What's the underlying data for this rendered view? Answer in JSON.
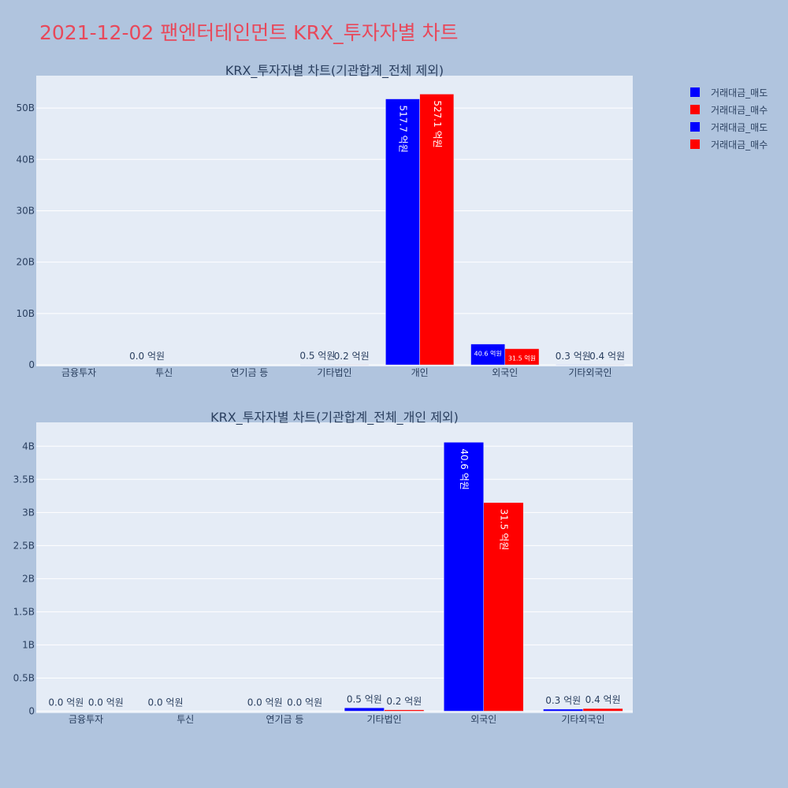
{
  "page": {
    "title": "2021-12-02 팬엔터테인먼트 KRX_투자자별 차트"
  },
  "legend": [
    {
      "label": "거래대금_매도",
      "color": "#0000ff"
    },
    {
      "label": "거래대금_매수",
      "color": "#ff0000"
    },
    {
      "label": "거래대금_매도",
      "color": "#0000ff"
    },
    {
      "label": "거래대금_매수",
      "color": "#ff0000"
    }
  ],
  "chart_data": [
    {
      "type": "bar",
      "title": "KRX_투자자별 차트(기관합계_전체 제외)",
      "categories": [
        "금융투자",
        "투신",
        "연기금 등",
        "기타법인",
        "개인",
        "외국인",
        "기타외국인"
      ],
      "series": [
        {
          "name": "거래대금_매도",
          "color": "#0000ff",
          "values": [
            0,
            0,
            0,
            50000000,
            51770000000,
            4060000000,
            30000000
          ],
          "labels": [
            "",
            "0.0 억원",
            "",
            "0.5 억원",
            "517.7 억원",
            "40.6 억원",
            "0.3 억원"
          ]
        },
        {
          "name": "거래대금_매수",
          "color": "#ff0000",
          "values": [
            0,
            0,
            0,
            20000000,
            52710000000,
            3150000000,
            40000000
          ],
          "labels": [
            "",
            "",
            "",
            "0.2 억원",
            "527.1 억원",
            "31.5 억원",
            "0.4 억원"
          ]
        }
      ],
      "ylim": [
        -300000000,
        56300000000
      ],
      "yticks": [
        0,
        10000000000,
        20000000000,
        30000000000,
        40000000000,
        50000000000
      ],
      "ytick_labels": [
        "0",
        "10B",
        "20B",
        "30B",
        "40B",
        "50B"
      ],
      "grid": true
    },
    {
      "type": "bar",
      "title": "KRX_투자자별 차트(기관합계_전체_개인 제외)",
      "categories": [
        "금융투자",
        "투신",
        "연기금 등",
        "기타법인",
        "외국인",
        "기타외국인"
      ],
      "series": [
        {
          "name": "거래대금_매도",
          "color": "#0000ff",
          "values": [
            0,
            0,
            0,
            50000000,
            4060000000,
            30000000
          ],
          "labels": [
            "0.0 억원",
            "0.0 억원",
            "0.0 억원",
            "0.5 억원",
            "40.6 억원",
            "0.3 억원"
          ]
        },
        {
          "name": "거래대금_매수",
          "color": "#ff0000",
          "values": [
            0,
            0,
            0,
            20000000,
            3150000000,
            40000000
          ],
          "labels": [
            "0.0 억원",
            "",
            "0.0 억원",
            "0.2 억원",
            "31.5 억원",
            "0.4 억원"
          ]
        }
      ],
      "ylim": [
        -30000000,
        4360000000
      ],
      "yticks": [
        0,
        500000000,
        1000000000,
        1500000000,
        2000000000,
        2500000000,
        3000000000,
        3500000000,
        4000000000
      ],
      "ytick_labels": [
        "0",
        "0.5B",
        "1B",
        "1.5B",
        "2B",
        "2.5B",
        "3B",
        "3.5B",
        "4B"
      ],
      "grid": true
    }
  ]
}
